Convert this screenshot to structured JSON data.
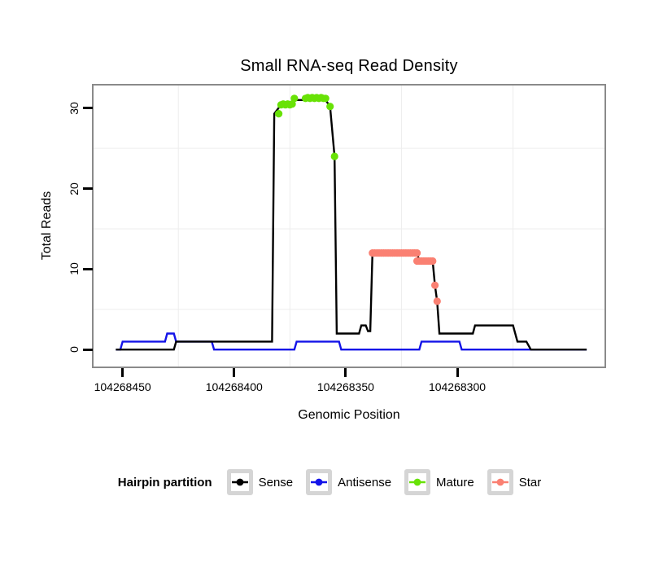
{
  "title": "Small RNA-seq Read Density",
  "axes": {
    "x": {
      "label": "Genomic Position",
      "ticks": [
        104268450,
        104268400,
        104268350,
        104268300
      ],
      "minor_gridlines": [
        104268425,
        104268375,
        104268325,
        104268275
      ]
    },
    "y": {
      "label": "Total Reads",
      "ticks": [
        0,
        10,
        20,
        30
      ],
      "minor_gridlines": [
        5,
        15,
        25
      ]
    }
  },
  "legend": {
    "title": "Hairpin partition",
    "items": [
      {
        "label": "Sense",
        "color": "#000000"
      },
      {
        "label": "Antisense",
        "color": "#1313E8"
      },
      {
        "label": "Mature",
        "color": "#68E206"
      },
      {
        "label": "Star",
        "color": "#FA8072"
      }
    ]
  },
  "colors": {
    "panel_border": "#8A8A8A",
    "gridline": "#EDEDED",
    "legend_key_border": "#D5D5D5",
    "background": "#FFFFFF"
  },
  "chart_data": {
    "type": "line",
    "title": "Small RNA-seq Read Density",
    "xlabel": "Genomic Position",
    "ylabel": "Total Reads",
    "x_reversed": true,
    "x_range": [
      104268463,
      104268234
    ],
    "y_range": [
      -2.1,
      32.8
    ],
    "x_ticks": [
      104268450,
      104268400,
      104268350,
      104268300
    ],
    "y_ticks": [
      0,
      10,
      20,
      30
    ],
    "grid": "minor",
    "legend_position": "bottom",
    "series": [
      {
        "name": "Sense",
        "style": "line",
        "color": "#000000",
        "points": [
          [
            104268453,
            0
          ],
          [
            104268427,
            0
          ],
          [
            104268426,
            1
          ],
          [
            104268383,
            1
          ],
          [
            104268382,
            29.3
          ],
          [
            104268379,
            30.4
          ],
          [
            104268374,
            30.4
          ],
          [
            104268373,
            31
          ],
          [
            104268359,
            31
          ],
          [
            104268357,
            30.2
          ],
          [
            104268355,
            24
          ],
          [
            104268354,
            2
          ],
          [
            104268344,
            2
          ],
          [
            104268343,
            3
          ],
          [
            104268341,
            3
          ],
          [
            104268340,
            2.3
          ],
          [
            104268339,
            2.3
          ],
          [
            104268338,
            12
          ],
          [
            104268318,
            12
          ],
          [
            104268317,
            11
          ],
          [
            104268311,
            11
          ],
          [
            104268310,
            8
          ],
          [
            104268309,
            6
          ],
          [
            104268308,
            2
          ],
          [
            104268293,
            2
          ],
          [
            104268292,
            3
          ],
          [
            104268275,
            3
          ],
          [
            104268273,
            1
          ],
          [
            104268269,
            1
          ],
          [
            104268267,
            0
          ],
          [
            104268242,
            0
          ]
        ]
      },
      {
        "name": "Antisense",
        "style": "line",
        "color": "#1313E8",
        "points": [
          [
            104268453,
            0
          ],
          [
            104268451,
            0
          ],
          [
            104268450,
            1
          ],
          [
            104268431,
            1
          ],
          [
            104268430,
            2
          ],
          [
            104268427,
            2
          ],
          [
            104268426,
            1
          ],
          [
            104268410,
            1
          ],
          [
            104268409,
            0
          ],
          [
            104268373,
            0
          ],
          [
            104268372,
            1
          ],
          [
            104268353,
            1
          ],
          [
            104268352,
            0
          ],
          [
            104268317,
            0
          ],
          [
            104268316,
            1
          ],
          [
            104268299,
            1
          ],
          [
            104268298,
            0
          ],
          [
            104268242,
            0
          ]
        ]
      },
      {
        "name": "Mature",
        "style": "points",
        "color": "#68E206",
        "points": [
          [
            104268380,
            29.3
          ],
          [
            104268379,
            30.4
          ],
          [
            104268378,
            30.5
          ],
          [
            104268377,
            30.4
          ],
          [
            104268376,
            30.5
          ],
          [
            104268375,
            30.4
          ],
          [
            104268374,
            30.5
          ],
          [
            104268373,
            31.2
          ],
          [
            104268368,
            31.2
          ],
          [
            104268367,
            31.3
          ],
          [
            104268366,
            31.2
          ],
          [
            104268365,
            31.3
          ],
          [
            104268364,
            31.2
          ],
          [
            104268363,
            31.3
          ],
          [
            104268362,
            31.2
          ],
          [
            104268361,
            31.3
          ],
          [
            104268360,
            31.2
          ],
          [
            104268359,
            31.2
          ],
          [
            104268357,
            30.2
          ],
          [
            104268355,
            24
          ]
        ]
      },
      {
        "name": "Star",
        "style": "points",
        "color": "#FA8072",
        "points": [
          [
            104268338,
            12
          ],
          [
            104268337,
            12
          ],
          [
            104268336,
            12
          ],
          [
            104268335,
            12
          ],
          [
            104268334,
            12
          ],
          [
            104268333,
            12
          ],
          [
            104268332,
            12
          ],
          [
            104268331,
            12
          ],
          [
            104268330,
            12
          ],
          [
            104268329,
            12
          ],
          [
            104268328,
            12
          ],
          [
            104268327,
            12
          ],
          [
            104268326,
            12
          ],
          [
            104268325,
            12
          ],
          [
            104268324,
            12
          ],
          [
            104268323,
            12
          ],
          [
            104268322,
            12
          ],
          [
            104268321,
            12
          ],
          [
            104268320,
            12
          ],
          [
            104268319,
            12
          ],
          [
            104268318,
            12
          ],
          [
            104268318,
            11
          ],
          [
            104268317,
            11
          ],
          [
            104268316,
            11
          ],
          [
            104268315,
            11
          ],
          [
            104268314,
            11
          ],
          [
            104268313,
            11
          ],
          [
            104268312,
            11
          ],
          [
            104268311,
            11
          ],
          [
            104268310,
            8
          ],
          [
            104268309,
            6
          ]
        ]
      }
    ]
  }
}
